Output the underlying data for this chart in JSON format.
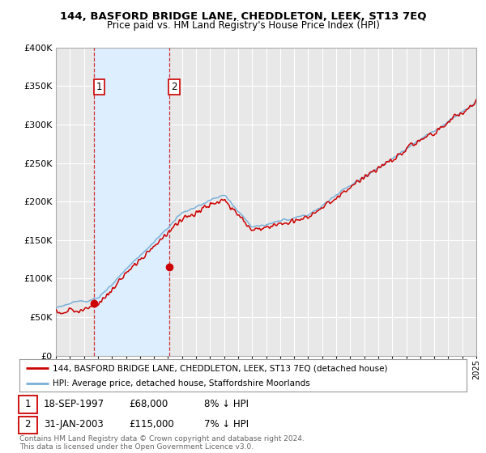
{
  "title": "144, BASFORD BRIDGE LANE, CHEDDLETON, LEEK, ST13 7EQ",
  "subtitle": "Price paid vs. HM Land Registry's House Price Index (HPI)",
  "background_color": "#ffffff",
  "plot_bg_color": "#e8e8e8",
  "grid_color": "#ffffff",
  "shade_color": "#ddeeff",
  "ylim": [
    0,
    400000
  ],
  "yticks": [
    0,
    50000,
    100000,
    150000,
    200000,
    250000,
    300000,
    350000,
    400000
  ],
  "ytick_labels": [
    "£0",
    "£50K",
    "£100K",
    "£150K",
    "£200K",
    "£250K",
    "£300K",
    "£350K",
    "£400K"
  ],
  "xstart_year": 1995,
  "xend_year": 2025,
  "hpi_color": "#7ab0d8",
  "price_color": "#cc0000",
  "sale1_year": 1997.72,
  "sale1_price": 68000,
  "sale1_label": "1",
  "sale1_date": "18-SEP-1997",
  "sale1_hpi_pct": "8% ↓ HPI",
  "sale2_year": 2003.08,
  "sale2_price": 115000,
  "sale2_label": "2",
  "sale2_date": "31-JAN-2003",
  "sale2_hpi_pct": "7% ↓ HPI",
  "legend_line1": "144, BASFORD BRIDGE LANE, CHEDDLETON, LEEK, ST13 7EQ (detached house)",
  "legend_line2": "HPI: Average price, detached house, Staffordshire Moorlands",
  "footer": "Contains HM Land Registry data © Crown copyright and database right 2024.\nThis data is licensed under the Open Government Licence v3.0."
}
